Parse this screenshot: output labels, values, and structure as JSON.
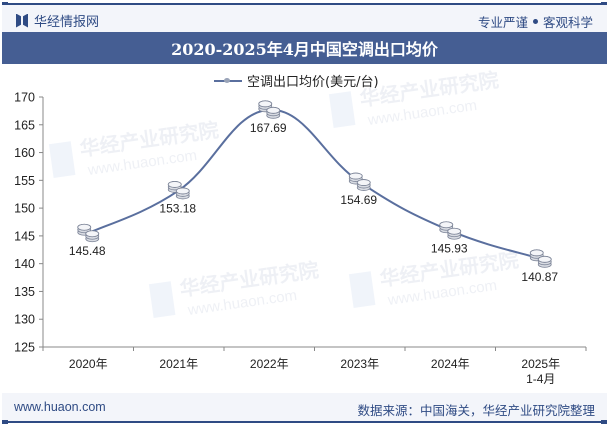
{
  "header": {
    "brand": "华经情报网",
    "motto_left": "专业严谨",
    "motto_right": "客观科学",
    "title": "2020-2025年4月中国空调出口均价"
  },
  "legend": {
    "label": "空调出口均价(美元/台)"
  },
  "footer": {
    "url": "www.huaon.com",
    "source": "数据来源：中国海关，华经产业研究院整理"
  },
  "watermark": {
    "text": "华经产业研究院",
    "url": "www.huaon.com"
  },
  "colors": {
    "brand": "#2f4b84",
    "title_bar": "#455e93",
    "line": "#5a6f9e",
    "band": "#f3f5fa"
  },
  "chart_data": {
    "type": "line",
    "title": "2020-2025年4月中国空调出口均价",
    "categories": [
      "2020年",
      "2021年",
      "2022年",
      "2023年",
      "2024年",
      "2025年\n1-4月"
    ],
    "series": [
      {
        "name": "空调出口均价(美元/台)",
        "values": [
          145.48,
          153.18,
          167.69,
          154.69,
          145.93,
          140.87
        ]
      }
    ],
    "xlabel": "",
    "ylabel": "",
    "ylim": [
      125,
      170
    ],
    "yticks": [
      125,
      130,
      135,
      140,
      145,
      150,
      155,
      160,
      165,
      170
    ],
    "grid": false,
    "legend_position": "top",
    "smooth": true,
    "data_labels": true
  }
}
